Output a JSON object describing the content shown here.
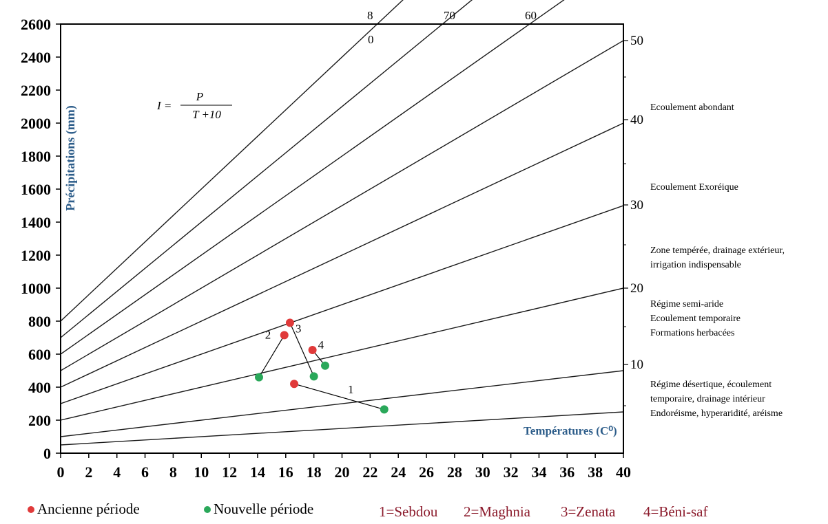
{
  "chart_data": {
    "type": "scatter",
    "title": "",
    "xlabel": "Températures (C⁰)",
    "ylabel": "Précipitations (mm)",
    "xlim": [
      0,
      40
    ],
    "ylim": [
      0,
      2600
    ],
    "x_ticks": [
      "0",
      "2",
      "4",
      "6",
      "8",
      "10",
      "12",
      "14",
      "16",
      "18",
      "20",
      "22",
      "24",
      "26",
      "28",
      "30",
      "32",
      "34",
      "36",
      "38",
      "40"
    ],
    "y_ticks": [
      "0",
      "200",
      "400",
      "600",
      "800",
      "1000",
      "1200",
      "1400",
      "1600",
      "1800",
      "2000",
      "2200",
      "2400",
      "2600"
    ],
    "formula": {
      "lhs": "I =",
      "numerator": "P",
      "denominator": "T +10"
    },
    "index_lines": [
      5,
      10,
      20,
      30,
      40,
      50,
      60,
      70,
      80
    ],
    "right_scale_labels": [
      "10",
      "20",
      "30",
      "40",
      "50"
    ],
    "top_labels": [
      "8",
      "0",
      "70",
      "60"
    ],
    "zones": [
      [
        "Ecoulement abondant"
      ],
      [
        "Ecoulement Exoréique"
      ],
      [
        "Zone tempérée, drainage extérieur,",
        "irrigation indispensable"
      ],
      [
        "Régime semi-aride",
        "Ecoulement temporaire",
        "Formations herbacées"
      ],
      [
        "Régime désertique, écoulement",
        "temporaire, drainage intérieur",
        "Endoréisme, hyperaridité, aréisme"
      ]
    ],
    "series": [
      {
        "name": "Ancienne période",
        "color": "#e03a3a",
        "points": [
          {
            "station": "1",
            "x": 16.6,
            "y": 420
          },
          {
            "station": "2",
            "x": 15.9,
            "y": 715
          },
          {
            "station": "3",
            "x": 16.3,
            "y": 790
          },
          {
            "station": "4",
            "x": 17.9,
            "y": 625
          }
        ]
      },
      {
        "name": "Nouvelle période",
        "color": "#2aa85a",
        "points": [
          {
            "station": "1",
            "x": 23.0,
            "y": 265
          },
          {
            "station": "2",
            "x": 14.1,
            "y": 460
          },
          {
            "station": "3",
            "x": 18.0,
            "y": 465
          },
          {
            "station": "4",
            "x": 18.8,
            "y": 530
          }
        ]
      }
    ],
    "stations": [
      "1=Sebdou",
      "2=Maghnia",
      "3=Zenata",
      "4=Béni-saf"
    ]
  }
}
